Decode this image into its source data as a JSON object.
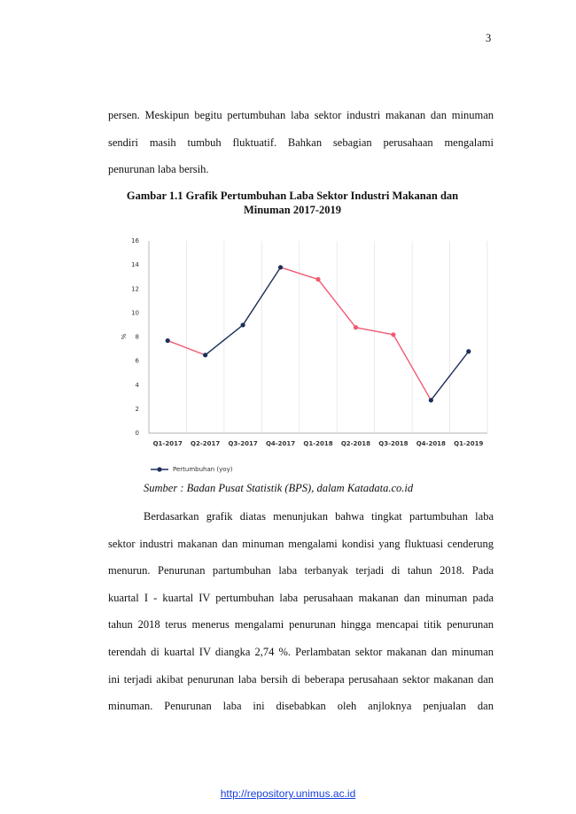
{
  "page_number": "3",
  "intro_lines": [
    "persen. Meskipun begitu pertumbuhan laba sektor industri makanan dan minuman",
    "sendiri masih tumbuh fluktuatif. Bahkan sebagian perusahaan mengalami",
    "penurunan laba bersih."
  ],
  "figure_caption": [
    "Gambar 1.1 Grafik Pertumbuhan Laba Sektor Industri Makanan dan",
    "Minuman 2017-2019"
  ],
  "chart_data": {
    "type": "line",
    "y_label": "%",
    "categories": [
      "Q1-2017",
      "Q2-2017",
      "Q3-2017",
      "Q4-2017",
      "Q1-2018",
      "Q2-2018",
      "Q3-2018",
      "Q4-2018",
      "Q1-2019"
    ],
    "series": [
      {
        "name": "Pertumbuhan (yoy)",
        "color": "#1c2f5a",
        "decline_color": "#f25a72",
        "values": [
          7.7,
          6.5,
          9.0,
          13.8,
          12.8,
          8.8,
          8.2,
          2.74,
          6.8
        ]
      }
    ],
    "ylim": [
      0,
      16
    ],
    "yticks": [
      0,
      2,
      4,
      6,
      8,
      10,
      12,
      14,
      16
    ],
    "grid": "x",
    "legend": "bottom-left"
  },
  "figure_source": "Sumber : Badan Pusat Statistik (BPS), dalam Katadata.co.id",
  "body_lines": [
    "Berdasarkan grafik diatas menunjukan bahwa tingkat partumbuhan laba",
    "sektor industri makanan dan minuman mengalami kondisi yang fluktuasi cenderung",
    "menurun. Penurunan partumbuhan laba terbanyak terjadi di tahun 2018. Pada",
    "kuartal I - kuartal IV pertumbuhan laba perusahaan makanan dan minuman pada",
    "tahun 2018 terus menerus mengalami penurunan hingga mencapai titik penurunan",
    "terendah di kuartal IV diangka 2,74 %. Perlambatan sektor makanan dan minuman",
    "ini terjadi akibat penurunan laba bersih di beberapa perusahaan sektor makanan dan",
    "minuman. Penurunan laba ini disebabkan oleh anjloknya penjualan dan"
  ],
  "footer_link": "http://repository.unimus.ac.id"
}
